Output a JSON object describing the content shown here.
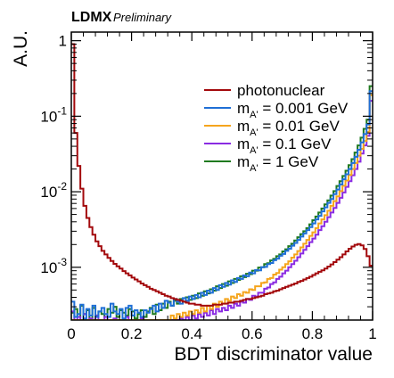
{
  "chart_data": {
    "type": "histogram-step",
    "experiment": "LDMX",
    "status": "Preliminary",
    "xlabel": "BDT discriminator value",
    "ylabel": "A.U.",
    "xlim": [
      0,
      1
    ],
    "ylim": [
      0.0002,
      1.3
    ],
    "yscale": "log",
    "grid": false,
    "legend_position": "top-right",
    "x_ticks": [
      {
        "value": 0,
        "label": "0"
      },
      {
        "value": 0.2,
        "label": "0.2"
      },
      {
        "value": 0.4,
        "label": "0.4"
      },
      {
        "value": 0.6,
        "label": "0.6"
      },
      {
        "value": 0.8,
        "label": "0.8"
      },
      {
        "value": 1,
        "label": "1"
      }
    ],
    "y_ticks": [
      {
        "value": 0.001,
        "base": "10",
        "exp": "-3"
      },
      {
        "value": 0.01,
        "base": "10",
        "exp": "-2"
      },
      {
        "value": 0.1,
        "base": "10",
        "exp": "-1"
      },
      {
        "value": 1,
        "label": "1"
      }
    ],
    "series": [
      {
        "name": "photonuclear",
        "color": "#a3090c",
        "x_start": 0.0,
        "bin_width": 0.01,
        "values": [
          0.9,
          0.06,
          0.022,
          0.011,
          0.0065,
          0.0045,
          0.0034,
          0.0027,
          0.0022,
          0.0019,
          0.00165,
          0.00148,
          0.00133,
          0.00121,
          0.00111,
          0.00103,
          0.00096,
          0.00089,
          0.00083,
          0.00078,
          0.00073,
          0.00069,
          0.00065,
          0.00061,
          0.00058,
          0.00055,
          0.00052,
          0.0005,
          0.00048,
          0.00046,
          0.00044,
          0.00042,
          0.00041,
          0.00039,
          0.00038,
          0.00037,
          0.00036,
          0.00035,
          0.00034,
          0.00033,
          0.00033,
          0.00032,
          0.00032,
          0.00031,
          0.00031,
          0.00031,
          0.00031,
          0.00032,
          0.00032,
          0.00032,
          0.00033,
          0.00033,
          0.00034,
          0.00034,
          0.00035,
          0.00035,
          0.00036,
          0.00037,
          0.00038,
          0.00038,
          0.00039,
          0.0004,
          0.00041,
          0.00042,
          0.00044,
          0.00045,
          0.00046,
          0.00048,
          0.00049,
          0.00051,
          0.00053,
          0.00055,
          0.00057,
          0.00059,
          0.00061,
          0.00064,
          0.00066,
          0.00069,
          0.00072,
          0.00075,
          0.00079,
          0.00083,
          0.00087,
          0.00091,
          0.00096,
          0.00102,
          0.00109,
          0.00117,
          0.00126,
          0.00136,
          0.00148,
          0.00162,
          0.00176,
          0.00188,
          0.00198,
          0.00203,
          0.00195,
          0.00175,
          0.0014,
          0.00105
        ]
      },
      {
        "name": "0.001 GeV",
        "color": "#1f6fd6",
        "x_start": 0.0,
        "bin_width": 0.01,
        "values": [
          0.00035,
          0.00022,
          0.00024,
          0.00032,
          0.00021,
          0.00028,
          0.00023,
          0.00031,
          0.00022,
          0.00026,
          0.00029,
          0.00024,
          0.00022,
          0.00033,
          0.00026,
          0.00024,
          0.00028,
          0.00021,
          0.00029,
          0.00031,
          0.00023,
          0.00027,
          0.00025,
          0.00022,
          0.00027,
          0.00025,
          0.00028,
          0.00031,
          0.00026,
          0.00033,
          0.00029,
          0.00036,
          0.00034,
          0.00031,
          0.00038,
          0.00035,
          0.00033,
          0.00039,
          0.00036,
          0.00041,
          0.00038,
          0.00043,
          0.0004,
          0.00046,
          0.00043,
          0.00049,
          0.00046,
          0.00053,
          0.0005,
          0.00058,
          0.00055,
          0.00062,
          0.00059,
          0.00067,
          0.00064,
          0.00072,
          0.0007,
          0.00078,
          0.00076,
          0.00085,
          0.00083,
          0.00092,
          0.00091,
          0.001,
          0.00101,
          0.0011,
          0.00114,
          0.00124,
          0.0013,
          0.00142,
          0.0015,
          0.00165,
          0.00176,
          0.00193,
          0.0021,
          0.0023,
          0.00255,
          0.0028,
          0.0031,
          0.0034,
          0.0038,
          0.0043,
          0.0048,
          0.0055,
          0.0062,
          0.0071,
          0.008,
          0.0093,
          0.0107,
          0.0125,
          0.0146,
          0.017,
          0.02,
          0.024,
          0.029,
          0.036,
          0.045,
          0.058,
          0.078,
          0.215
        ]
      },
      {
        "name": "0.01 GeV",
        "color": "#f5a51d",
        "x_start": 0.0,
        "bin_width": 0.01,
        "values": [
          0.0002,
          0.0002,
          0.0002,
          0.0002,
          0.0002,
          0.0002,
          0.0002,
          0.0002,
          0.0002,
          0.0002,
          0.0002,
          0.0002,
          0.0002,
          0.0002,
          0.0002,
          0.0002,
          0.0002,
          0.0002,
          0.0002,
          0.0002,
          0.0002,
          0.0002,
          0.0002,
          0.0002,
          0.0002,
          0.0002,
          0.0002,
          0.0002,
          0.0002,
          0.0002,
          0.0002,
          0.0002,
          0.0002,
          0.00023,
          0.00021,
          0.00024,
          0.00022,
          0.00025,
          0.00023,
          0.00026,
          0.00024,
          0.00027,
          0.00025,
          0.00029,
          0.00026,
          0.00031,
          0.00028,
          0.00033,
          0.0003,
          0.00035,
          0.00033,
          0.00038,
          0.00036,
          0.00041,
          0.00039,
          0.00044,
          0.00042,
          0.00047,
          0.00046,
          0.00051,
          0.0005,
          0.00056,
          0.00056,
          0.00062,
          0.00063,
          0.0007,
          0.00072,
          0.0008,
          0.00084,
          0.00093,
          0.001,
          0.0011,
          0.0012,
          0.00134,
          0.00148,
          0.00164,
          0.00183,
          0.00205,
          0.0023,
          0.0026,
          0.0029,
          0.0033,
          0.0038,
          0.0043,
          0.0049,
          0.0056,
          0.0065,
          0.0075,
          0.0087,
          0.0102,
          0.012,
          0.0141,
          0.0167,
          0.02,
          0.024,
          0.03,
          0.037,
          0.047,
          0.062,
          0.19
        ]
      },
      {
        "name": "0.1 GeV",
        "color": "#8a2be2",
        "x_start": 0.0,
        "bin_width": 0.01,
        "values": [
          0.00026,
          0.0002,
          0.00022,
          0.0002,
          0.00024,
          0.0002,
          0.00021,
          0.0002,
          0.00023,
          0.0002,
          0.0002,
          0.00022,
          0.0002,
          0.0002,
          0.00021,
          0.0002,
          0.0002,
          0.0002,
          0.00022,
          0.0002,
          0.0002,
          0.0002,
          0.0002,
          0.00021,
          0.0002,
          0.0002,
          0.0002,
          0.0002,
          0.0002,
          0.0002,
          0.0002,
          0.0002,
          0.0002,
          0.0002,
          0.0002,
          0.0002,
          0.00021,
          0.0002,
          0.00022,
          0.0002,
          0.00023,
          0.00021,
          0.00024,
          0.00022,
          0.00025,
          0.00023,
          0.00027,
          0.00024,
          0.00028,
          0.00026,
          0.00029,
          0.00027,
          0.00031,
          0.00029,
          0.00033,
          0.00031,
          0.00035,
          0.00034,
          0.00038,
          0.00037,
          0.00042,
          0.00041,
          0.00046,
          0.00046,
          0.00052,
          0.00054,
          0.0006,
          0.00063,
          0.0007,
          0.00075,
          0.00083,
          0.0009,
          0.001,
          0.0011,
          0.00122,
          0.00136,
          0.00152,
          0.0017,
          0.0019,
          0.00215,
          0.0024,
          0.0027,
          0.0031,
          0.0035,
          0.004,
          0.0046,
          0.0053,
          0.0061,
          0.0071,
          0.0083,
          0.0098,
          0.0116,
          0.0138,
          0.0165,
          0.02,
          0.025,
          0.032,
          0.041,
          0.055,
          0.16
        ]
      },
      {
        "name": "1 GeV",
        "color": "#1f7a1f",
        "x_start": 0.0,
        "bin_width": 0.01,
        "values": [
          0.00025,
          0.00028,
          0.00022,
          0.00031,
          0.00024,
          0.00027,
          0.00021,
          0.00029,
          0.00023,
          0.00026,
          0.00024,
          0.00022,
          0.00028,
          0.00025,
          0.0003,
          0.00022,
          0.00027,
          0.00025,
          0.00023,
          0.00028,
          0.00026,
          0.00021,
          0.00024,
          0.00027,
          0.00022,
          0.00026,
          0.00029,
          0.00024,
          0.00032,
          0.00027,
          0.00033,
          0.00029,
          0.00035,
          0.00031,
          0.00036,
          0.00033,
          0.00038,
          0.00035,
          0.0004,
          0.00037,
          0.00042,
          0.00039,
          0.00045,
          0.00042,
          0.00048,
          0.00045,
          0.00051,
          0.00049,
          0.00056,
          0.00053,
          0.0006,
          0.00057,
          0.00065,
          0.00062,
          0.0007,
          0.00068,
          0.00076,
          0.00074,
          0.00082,
          0.00081,
          0.0009,
          0.0009,
          0.00099,
          0.001,
          0.0011,
          0.00113,
          0.00123,
          0.00129,
          0.0014,
          0.00148,
          0.00162,
          0.00173,
          0.0019,
          0.00205,
          0.00226,
          0.0025,
          0.00275,
          0.003,
          0.0033,
          0.0037,
          0.0042,
          0.0047,
          0.0053,
          0.006,
          0.0068,
          0.0077,
          0.0089,
          0.0102,
          0.0119,
          0.0138,
          0.0162,
          0.019,
          0.0225,
          0.027,
          0.033,
          0.041,
          0.052,
          0.068,
          0.09,
          0.25
        ]
      }
    ]
  },
  "legend": {
    "mass_prefix": "m",
    "mass_subscript": "A'",
    "mass_eq": " = "
  }
}
